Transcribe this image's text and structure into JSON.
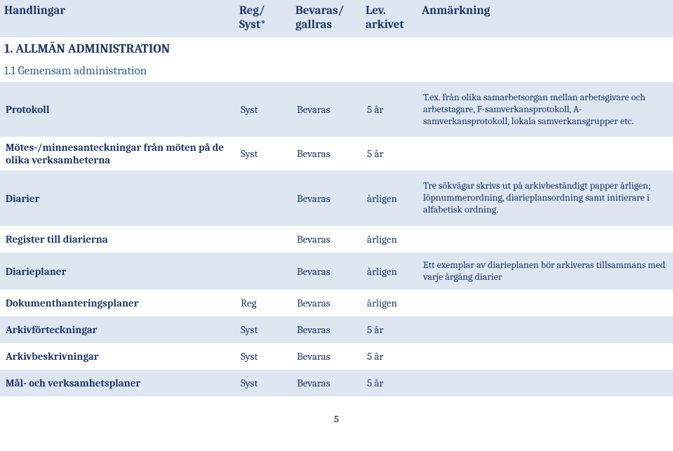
{
  "header": {
    "c1_l1": "Handlingar",
    "c2_l1": "Reg/",
    "c2_l2": "Syst*",
    "c3_l1": "Bevaras/",
    "c3_l2": "gallras",
    "c4_l1": "Lev.",
    "c4_l2": "arkivet",
    "c5_l1": "Anmärkning"
  },
  "h1": "1. ALLMÄN ADMINISTRATION",
  "h2": "1.1 Gemensam administration",
  "rows": [
    {
      "band": "a",
      "height": "tall",
      "handling": "Protokoll",
      "reg": "Syst",
      "bev": "Bevaras",
      "lev": "5 år",
      "note": "T.ex. från olika samarbetsorgan mellan arbetsgivare och arbetstagare, F-samverkansprotokoll, A-samverkansprotokoll, lokala samverkansgrupper etc."
    },
    {
      "band": "b",
      "height": "",
      "handling": "Mötes-/minnesanteckningar från möten på de olika verksamheterna",
      "reg": "Syst",
      "bev": "Bevaras",
      "lev": "5 år",
      "note": ""
    },
    {
      "band": "a",
      "height": "tall",
      "handling": "Diarier",
      "reg": "",
      "bev": "Bevaras",
      "lev": "årligen",
      "note": "Tre sökvägar skrivs ut på arkivbeständigt papper årligen; löpnummerordning, diarieplansordning samt initierare i alfabetisk ordning."
    },
    {
      "band": "b",
      "height": "med",
      "handling": "Register till diarierna",
      "reg": "",
      "bev": "Bevaras",
      "lev": "årligen",
      "note": ""
    },
    {
      "band": "a",
      "height": "med",
      "handling": "Diarieplaner",
      "reg": "",
      "bev": "Bevaras",
      "lev": "årligen",
      "note": "Ett exemplar av diarieplanen bör arkiveras tillsammans med varje årgång diarier"
    },
    {
      "band": "b",
      "height": "med",
      "handling": "Dokumenthanteringsplaner",
      "reg": "Reg",
      "bev": "Bevaras",
      "lev": "årligen",
      "note": ""
    },
    {
      "band": "a",
      "height": "med",
      "handling": "Arkivförteckningar",
      "reg": "Syst",
      "bev": "Bevaras",
      "lev": "5 år",
      "note": ""
    },
    {
      "band": "b",
      "height": "med",
      "handling": "Arkivbeskrivningar",
      "reg": "Syst",
      "bev": "Bevaras",
      "lev": "5 år",
      "note": ""
    },
    {
      "band": "a",
      "height": "med",
      "handling": "Mål- och verksamhetsplaner",
      "reg": "Syst",
      "bev": "Bevaras",
      "lev": "5 år",
      "note": ""
    }
  ],
  "page_num": "5",
  "style": {
    "band_a": "#dde6f1",
    "band_b": "#ffffff",
    "text": "#1f3864",
    "subhead": "#365f91"
  }
}
